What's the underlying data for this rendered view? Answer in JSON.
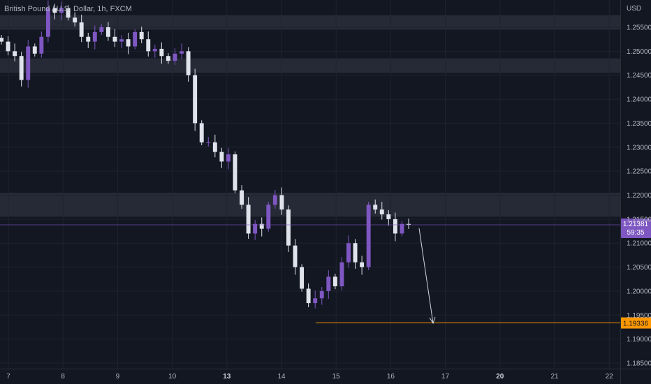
{
  "header": {
    "symbol_title": "British Pound / U.S. Dollar, 1h, FXCM"
  },
  "chart_data": {
    "type": "candlestick",
    "title": "British Pound / U.S. Dollar, 1h, FXCM",
    "currency_label": "USD",
    "ylim": [
      1.1825,
      1.26
    ],
    "y_ticks": [
      "1.25500",
      "1.25000",
      "1.24500",
      "1.24000",
      "1.23500",
      "1.23000",
      "1.22500",
      "1.22000",
      "1.21500",
      "1.21000",
      "1.20500",
      "1.20000",
      "1.19500",
      "1.19000",
      "1.18500"
    ],
    "x_ticks": [
      {
        "label": "7",
        "bold": false
      },
      {
        "label": "8",
        "bold": false
      },
      {
        "label": "9",
        "bold": false
      },
      {
        "label": "10",
        "bold": false
      },
      {
        "label": "13",
        "bold": true
      },
      {
        "label": "14",
        "bold": false
      },
      {
        "label": "15",
        "bold": false
      },
      {
        "label": "16",
        "bold": false
      },
      {
        "label": "17",
        "bold": false
      },
      {
        "label": "20",
        "bold": true
      },
      {
        "label": "21",
        "bold": false
      },
      {
        "label": "22",
        "bold": false
      }
    ],
    "current_price": {
      "value": 1.21381,
      "label": "1.21381",
      "countdown": "59:35"
    },
    "target_level": {
      "value": 1.19336,
      "label": "1.19336"
    },
    "zones": [
      {
        "from": 1.2575,
        "to": 1.2545
      },
      {
        "from": 1.2485,
        "to": 1.2455
      },
      {
        "from": 1.2205,
        "to": 1.2155
      }
    ],
    "series": [
      {
        "values": [
          1.252,
          1.25,
          1.249,
          1.244,
          1.251,
          1.2495,
          1.253,
          1.259,
          1.258,
          1.259,
          1.257,
          1.256,
          1.253,
          1.252,
          1.254,
          1.255,
          1.253,
          1.252,
          1.2525,
          1.251,
          1.254,
          1.2525,
          1.25,
          1.2505,
          1.249,
          1.248,
          1.2495,
          1.25,
          1.245,
          1.235,
          1.231,
          1.231,
          1.229,
          1.227,
          1.2285,
          1.221,
          1.218,
          1.212,
          1.214,
          1.213,
          1.218,
          1.22,
          1.217,
          1.2095,
          1.205,
          1.2005,
          1.1975,
          1.1985,
          1.2,
          1.203,
          1.201,
          1.206,
          1.21,
          1.206,
          1.205,
          1.218,
          1.217,
          1.216,
          1.215,
          1.212,
          1.214,
          1.21381
        ]
      }
    ],
    "colors": {
      "background": "#131722",
      "grid": "#1f2330",
      "zone": "#2a2e39",
      "up_candle": "#7e57c2",
      "down_candle": "#e0e3eb",
      "current_price": "#7e57c2",
      "target_line": "#ff9800",
      "axis_text": "#b2b5be",
      "arrow": "#d1d4dc"
    }
  }
}
